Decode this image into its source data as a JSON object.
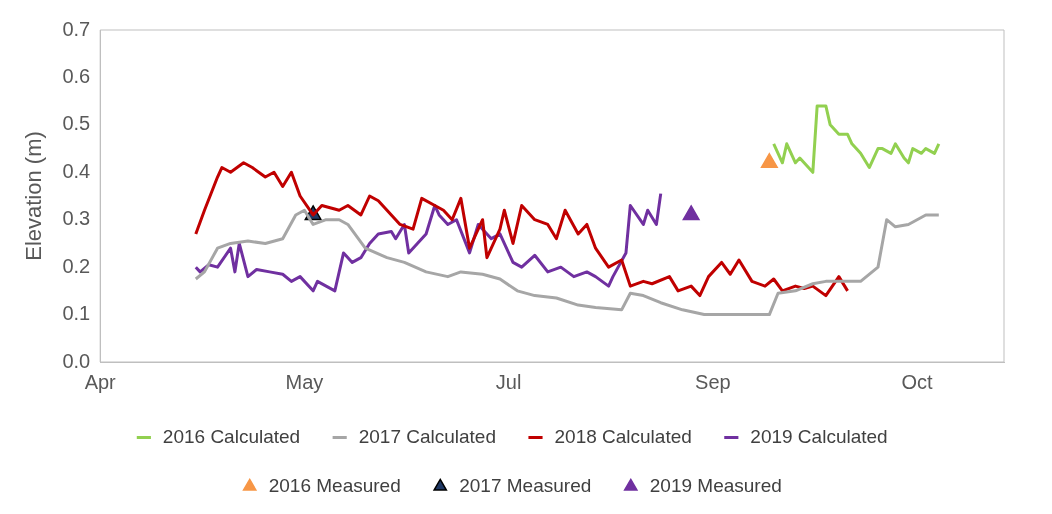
{
  "chart_data": {
    "type": "line",
    "ylabel": "Elevation (m)",
    "xlim": [
      "--04-14",
      "--11-08"
    ],
    "xticks": [
      {
        "value": "--04-14",
        "label": "Apr"
      },
      {
        "value": "--05-31",
        "label": "May"
      },
      {
        "value": "--07-17",
        "label": "Jul"
      },
      {
        "value": "--09-02",
        "label": "Sep"
      },
      {
        "value": "--10-19",
        "label": "Oct"
      }
    ],
    "ylim": [
      0,
      0.7
    ],
    "yticks": [
      {
        "value": 0,
        "label": "0.0"
      },
      {
        "value": 0.1,
        "label": "0.1"
      },
      {
        "value": 0.2,
        "label": "0.2"
      },
      {
        "value": 0.3,
        "label": "0.3"
      },
      {
        "value": 0.4,
        "label": "0.4"
      },
      {
        "value": 0.5,
        "label": "0.5"
      },
      {
        "value": 0.6,
        "label": "0.6"
      },
      {
        "value": 0.7,
        "label": "0.7"
      }
    ],
    "grid": false,
    "legend": "bottom",
    "line_style": "solid",
    "series": [
      {
        "name": "2016 Calculated",
        "type": "line",
        "marker": "none",
        "color": "#92d050",
        "x": [
          "--09-16",
          "--09-18",
          "--09-19",
          "--09-21",
          "--09-22",
          "--09-24",
          "--09-25",
          "--09-26",
          "--09-28",
          "--09-29",
          "--10-01",
          "--10-03",
          "--10-04",
          "--10-05",
          "--10-06",
          "--10-08",
          "--10-10",
          "--10-11",
          "--10-13",
          "--10-14",
          "--10-16",
          "--10-17",
          "--10-18",
          "--10-20",
          "--10-21",
          "--10-23",
          "--10-24"
        ],
        "values": [
          0.46,
          0.42,
          0.46,
          0.42,
          0.43,
          0.41,
          0.4,
          0.54,
          0.54,
          0.5,
          0.48,
          0.48,
          0.46,
          0.45,
          0.44,
          0.41,
          0.45,
          0.45,
          0.44,
          0.46,
          0.43,
          0.42,
          0.45,
          0.44,
          0.45,
          0.44,
          0.46
        ]
      },
      {
        "name": "2017 Calculated",
        "type": "line",
        "marker": "none",
        "color": "#a6a6a6",
        "x": [
          "--05-06",
          "--05-08",
          "--05-11",
          "--05-14",
          "--05-18",
          "--05-22",
          "--05-26",
          "--05-29",
          "--05-31",
          "--06-02",
          "--06-05",
          "--06-08",
          "--06-10",
          "--06-14",
          "--06-19",
          "--06-23",
          "--06-28",
          "--07-03",
          "--07-06",
          "--07-11",
          "--07-15",
          "--07-19",
          "--07-23",
          "--07-28",
          "--08-02",
          "--08-06",
          "--08-12",
          "--08-14",
          "--08-17",
          "--08-21",
          "--08-26",
          "--08-31",
          "--09-05",
          "--09-10",
          "--09-15",
          "--09-17",
          "--09-21",
          "--09-25",
          "--09-28",
          "--10-02",
          "--10-06",
          "--10-10",
          "--10-12",
          "--10-14",
          "--10-17",
          "--10-21",
          "--10-24"
        ],
        "values": [
          0.175,
          0.19,
          0.24,
          0.25,
          0.255,
          0.25,
          0.26,
          0.31,
          0.32,
          0.29,
          0.3,
          0.3,
          0.29,
          0.24,
          0.22,
          0.21,
          0.19,
          0.18,
          0.19,
          0.185,
          0.175,
          0.15,
          0.14,
          0.135,
          0.12,
          0.115,
          0.11,
          0.145,
          0.14,
          0.125,
          0.11,
          0.1,
          0.1,
          0.1,
          0.1,
          0.145,
          0.15,
          0.165,
          0.17,
          0.17,
          0.17,
          0.2,
          0.3,
          0.285,
          0.29,
          0.31,
          0.31
        ]
      },
      {
        "name": "2018 Calculated",
        "type": "line",
        "marker": "none",
        "color": "#c00000",
        "x": [
          "--05-06",
          "--05-08",
          "--05-11",
          "--05-12",
          "--05-14",
          "--05-17",
          "--05-19",
          "--05-22",
          "--05-24",
          "--05-26",
          "--05-28",
          "--05-30",
          "--06-02",
          "--06-04",
          "--06-08",
          "--06-10",
          "--06-13",
          "--06-15",
          "--06-17",
          "--06-20",
          "--06-22",
          "--06-25",
          "--06-27",
          "--06-30",
          "--07-02",
          "--07-04",
          "--07-06",
          "--07-08",
          "--07-11",
          "--07-12",
          "--07-15",
          "--07-16",
          "--07-18",
          "--07-20",
          "--07-23",
          "--07-26",
          "--07-28",
          "--07-30",
          "--08-02",
          "--08-04",
          "--08-06",
          "--08-09",
          "--08-12",
          "--08-14",
          "--08-17",
          "--08-19",
          "--08-23",
          "--08-25",
          "--08-28",
          "--08-30",
          "--09-01",
          "--09-04",
          "--09-06",
          "--09-08",
          "--09-11",
          "--09-14",
          "--09-16",
          "--09-18",
          "--09-21",
          "--09-23",
          "--09-25",
          "--09-28",
          "--10-01",
          "--10-03"
        ],
        "values": [
          0.27,
          0.32,
          0.39,
          0.41,
          0.4,
          0.42,
          0.41,
          0.39,
          0.4,
          0.37,
          0.4,
          0.35,
          0.31,
          0.33,
          0.32,
          0.33,
          0.31,
          0.35,
          0.34,
          0.31,
          0.29,
          0.28,
          0.345,
          0.33,
          0.32,
          0.3,
          0.345,
          0.24,
          0.3,
          0.22,
          0.28,
          0.32,
          0.25,
          0.33,
          0.3,
          0.29,
          0.26,
          0.32,
          0.27,
          0.29,
          0.24,
          0.2,
          0.215,
          0.16,
          0.17,
          0.165,
          0.18,
          0.15,
          0.16,
          0.14,
          0.18,
          0.21,
          0.185,
          0.215,
          0.17,
          0.16,
          0.175,
          0.15,
          0.16,
          0.155,
          0.16,
          0.14,
          0.18,
          0.15
        ]
      },
      {
        "name": "2019 Calculated",
        "type": "line",
        "marker": "none",
        "color": "#7030a0",
        "x": [
          "--05-06",
          "--05-07",
          "--05-09",
          "--05-11",
          "--05-14",
          "--05-15",
          "--05-16",
          "--05-18",
          "--05-20",
          "--05-23",
          "--05-26",
          "--05-28",
          "--05-30",
          "--06-02",
          "--06-03",
          "--06-05",
          "--06-07",
          "--06-09",
          "--06-11",
          "--06-13",
          "--06-15",
          "--06-17",
          "--06-20",
          "--06-21",
          "--06-23",
          "--06-24",
          "--06-26",
          "--06-28",
          "--06-30",
          "--07-01",
          "--07-03",
          "--07-05",
          "--07-08",
          "--07-10",
          "--07-13",
          "--07-15",
          "--07-18",
          "--07-20",
          "--07-23",
          "--07-26",
          "--07-29",
          "--08-01",
          "--08-04",
          "--08-06",
          "--08-09",
          "--08-10",
          "--08-13",
          "--08-14",
          "--08-17",
          "--08-18",
          "--08-20",
          "--08-21"
        ],
        "values": [
          0.2,
          0.19,
          0.205,
          0.2,
          0.24,
          0.19,
          0.25,
          0.18,
          0.195,
          0.19,
          0.185,
          0.17,
          0.18,
          0.15,
          0.17,
          0.16,
          0.15,
          0.23,
          0.21,
          0.22,
          0.25,
          0.27,
          0.275,
          0.26,
          0.29,
          0.23,
          0.25,
          0.27,
          0.33,
          0.31,
          0.29,
          0.3,
          0.23,
          0.29,
          0.26,
          0.27,
          0.21,
          0.2,
          0.225,
          0.19,
          0.2,
          0.18,
          0.19,
          0.18,
          0.16,
          0.18,
          0.23,
          0.33,
          0.29,
          0.32,
          0.29,
          0.355
        ]
      },
      {
        "name": "2016 Measured",
        "type": "scatter",
        "marker": "triangle",
        "color": "#f79646",
        "x": [
          "--09-15"
        ],
        "values": [
          0.42
        ]
      },
      {
        "name": "2017 Measured",
        "type": "scatter",
        "marker": "triangle",
        "color": "#1f3864",
        "x": [
          "--06-02"
        ],
        "values": [
          0.31
        ]
      },
      {
        "name": "2019 Measured",
        "type": "scatter",
        "marker": "triangle",
        "color": "#7030a0",
        "x": [
          "--08-28"
        ],
        "values": [
          0.31
        ]
      }
    ]
  }
}
